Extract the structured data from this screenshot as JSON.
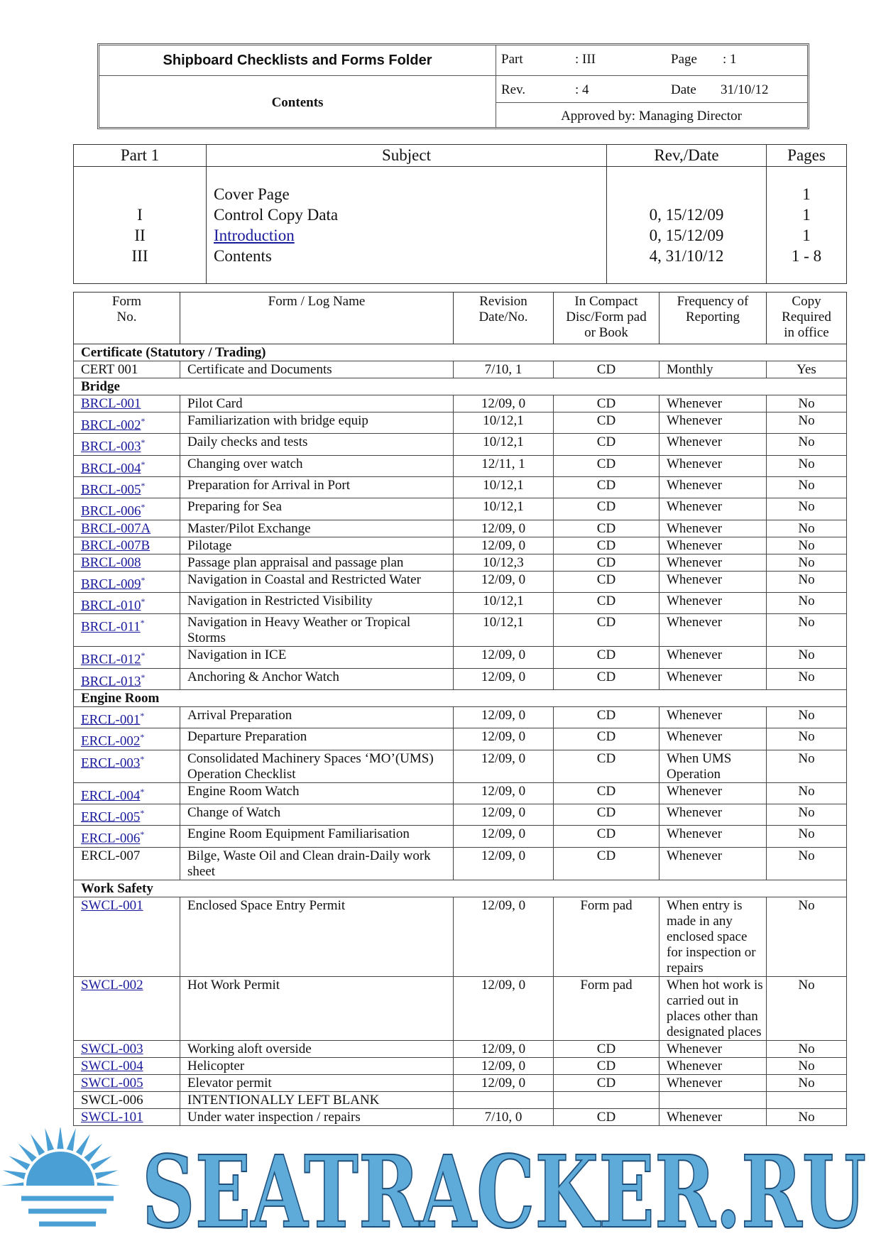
{
  "header": {
    "title": "Shipboard Checklists and Forms Folder",
    "subtitle": "Contents",
    "part_label": "Part",
    "part_value": ": III",
    "page_label": "Page",
    "page_value": ": 1",
    "rev_label": "Rev.",
    "rev_value": ": 4",
    "date_label": "Date",
    "date_value": "31/10/12",
    "approved": "Approved by: Managing Director"
  },
  "part1": {
    "headers": [
      "Part 1",
      "Subject",
      "Rev,/Date",
      "Pages"
    ],
    "rows": [
      {
        "subject": "Cover Page",
        "pages": "1"
      },
      {
        "part": "I",
        "subject": "Control Copy Data",
        "rev": "0, 15/12/09",
        "pages": "1"
      },
      {
        "part": "II",
        "subject": "Introduction",
        "rev": "0, 15/12/09",
        "pages": "1",
        "link": true
      },
      {
        "part": "III",
        "subject": "Contents",
        "rev": "4, 31/10/12",
        "pages": "1 - 8"
      }
    ]
  },
  "forms": {
    "headers": [
      "Form\nNo.",
      "Form / Log Name",
      "Revision\nDate/No.",
      "In Compact\nDisc/Form pad\nor Book",
      "Frequency of\nReporting",
      "Copy\nRequired\nin office"
    ],
    "rows": [
      {
        "section": "Certificate (Statutory / Trading)"
      },
      {
        "no": "CERT 001",
        "name": "Certificate and Documents",
        "rev": "7/10, 1",
        "media": "CD",
        "freq": "Monthly",
        "copy": "Yes"
      },
      {
        "section": "Bridge"
      },
      {
        "no": "BRCL-001",
        "name": "Pilot Card",
        "rev": "12/09, 0",
        "media": "CD",
        "freq": "Whenever",
        "copy": "No",
        "link": true
      },
      {
        "no": "BRCL-002",
        "note": "*",
        "name": "Familiarization with bridge equip",
        "rev": "10/12,1",
        "media": "CD",
        "freq": "Whenever",
        "copy": "No",
        "link": true
      },
      {
        "no": "BRCL-003",
        "note": "*",
        "name": "Daily checks and tests",
        "rev": "10/12,1",
        "media": "CD",
        "freq": "Whenever",
        "copy": "No",
        "link": true
      },
      {
        "no": "BRCL-004",
        "note": "*",
        "name": "Changing over watch",
        "rev": "12/11, 1",
        "media": "CD",
        "freq": "Whenever",
        "copy": "No",
        "link": true
      },
      {
        "no": "BRCL-005",
        "note": "*",
        "name": "Preparation for Arrival in Port",
        "rev": "10/12,1",
        "media": "CD",
        "freq": "Whenever",
        "copy": "No",
        "link": true
      },
      {
        "no": "BRCL-006",
        "note": "*",
        "name": "Preparing for Sea",
        "rev": "10/12,1",
        "media": "CD",
        "freq": "Whenever",
        "copy": "No",
        "link": true
      },
      {
        "no": "BRCL-007A",
        "name": "Master/Pilot Exchange",
        "rev": "12/09, 0",
        "media": "CD",
        "freq": "Whenever",
        "copy": "No",
        "link": true
      },
      {
        "no": "BRCL-007B",
        "name": "Pilotage",
        "rev": "12/09, 0",
        "media": "CD",
        "freq": "Whenever",
        "copy": "No",
        "link": true
      },
      {
        "no": "BRCL-008",
        "name": "Passage plan appraisal and passage plan",
        "rev": "10/12,3",
        "media": "CD",
        "freq": "Whenever",
        "copy": "No",
        "link": true
      },
      {
        "no": "BRCL-009",
        "note": "*",
        "name": "Navigation in Coastal and Restricted Water",
        "rev": "12/09, 0",
        "media": "CD",
        "freq": "Whenever",
        "copy": "No",
        "link": true
      },
      {
        "no": "BRCL-010",
        "note": "*",
        "name": "Navigation in Restricted Visibility",
        "rev": "10/12,1",
        "media": "CD",
        "freq": "Whenever",
        "copy": "No",
        "link": true
      },
      {
        "no": "BRCL-011",
        "note": "*",
        "name": "Navigation in Heavy Weather or Tropical Storms",
        "rev": "10/12,1",
        "media": "CD",
        "freq": "Whenever",
        "copy": "No",
        "link": true
      },
      {
        "no": "BRCL-012",
        "note": "*",
        "name": "Navigation in ICE",
        "rev": "12/09, 0",
        "media": "CD",
        "freq": "Whenever",
        "copy": "No",
        "link": true
      },
      {
        "no": "BRCL-013",
        "note": "*",
        "name": "Anchoring & Anchor Watch",
        "rev": "12/09, 0",
        "media": "CD",
        "freq": "Whenever",
        "copy": "No",
        "link": true
      },
      {
        "section": "Engine Room"
      },
      {
        "no": "ERCL-001",
        "note": "*",
        "name": "Arrival Preparation",
        "rev": "12/09, 0",
        "media": "CD",
        "freq": "Whenever",
        "copy": "No",
        "link": true
      },
      {
        "no": "ERCL-002",
        "note": "*",
        "name": "Departure Preparation",
        "rev": "12/09, 0",
        "media": "CD",
        "freq": "Whenever",
        "copy": "No",
        "link": true
      },
      {
        "no": "ERCL-003",
        "note": "*",
        "name": "Consolidated Machinery Spaces ‘MO’(UMS) Operation Checklist",
        "rev": "12/09, 0",
        "media": "CD",
        "freq": "When UMS Operation",
        "copy": "No",
        "link": true
      },
      {
        "no": "ERCL-004",
        "note": "*",
        "name": "Engine Room Watch",
        "rev": "12/09, 0",
        "media": "CD",
        "freq": "Whenever",
        "copy": "No",
        "link": true
      },
      {
        "no": "ERCL-005",
        "note": "*",
        "name": "Change of Watch",
        "rev": "12/09, 0",
        "media": "CD",
        "freq": "Whenever",
        "copy": "No",
        "link": true
      },
      {
        "no": "ERCL-006",
        "note": "*",
        "name": "Engine Room Equipment Familiarisation",
        "rev": "12/09, 0",
        "media": "CD",
        "freq": "Whenever",
        "copy": "No",
        "link": true
      },
      {
        "no": "ERCL-007",
        "name": "Bilge, Waste Oil and Clean drain-Daily work sheet",
        "rev": "12/09, 0",
        "media": "CD",
        "freq": "Whenever",
        "copy": "No"
      },
      {
        "section": "Work Safety"
      },
      {
        "no": "SWCL-001",
        "name": "Enclosed Space Entry Permit",
        "rev": "12/09, 0",
        "media": "Form pad",
        "freq": "When entry is made in any enclosed space for inspection or repairs",
        "copy": "No",
        "link": true
      },
      {
        "no": "SWCL-002",
        "name": "Hot Work Permit",
        "rev": "12/09, 0",
        "media": "Form pad",
        "freq": "When hot work is carried out in places other than designated places",
        "copy": "No",
        "link": true
      },
      {
        "no": "SWCL-003",
        "name": "Working aloft overside",
        "rev": "12/09, 0",
        "media": "CD",
        "freq": "Whenever",
        "copy": "No",
        "link": true
      },
      {
        "no": "SWCL-004",
        "name": "Helicopter",
        "rev": "12/09, 0",
        "media": "CD",
        "freq": "Whenever",
        "copy": "No",
        "link": true
      },
      {
        "no": "SWCL-005",
        "name": "Elevator permit",
        "rev": "12/09, 0",
        "media": "CD",
        "freq": "Whenever",
        "copy": "No",
        "link": true
      },
      {
        "no": "SWCL-006",
        "name": "INTENTIONALLY LEFT BLANK"
      },
      {
        "no": "SWCL-101",
        "name": "Under water inspection / repairs",
        "rev": "7/10, 0",
        "media": "CD",
        "freq": "Whenever",
        "copy": "No",
        "link": true
      }
    ]
  },
  "watermark": {
    "text": "SEATRACKER.RU"
  }
}
